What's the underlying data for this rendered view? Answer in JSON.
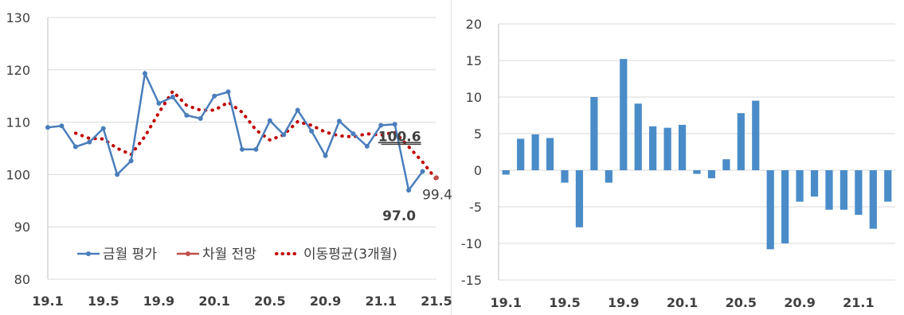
{
  "chart_data": [
    {
      "type": "line",
      "title": "",
      "xlabel": "",
      "ylabel": "",
      "ylim": [
        80,
        130
      ],
      "yticks": [
        80,
        90,
        100,
        110,
        120,
        130
      ],
      "xtick_labels": [
        "19.1",
        "19.5",
        "19.9",
        "20.1",
        "20.5",
        "20.9",
        "21.1",
        "21.5"
      ],
      "grid": "horizontal",
      "legend_position": "bottom-inside",
      "series": [
        {
          "name": "금월 평가",
          "color": "#4a7ebb",
          "style": "solid-markers",
          "values": [
            109.0,
            109.3,
            105.3,
            106.2,
            108.8,
            100.0,
            102.6,
            119.3,
            113.6,
            114.8,
            111.3,
            110.7,
            115.0,
            115.8,
            104.8,
            104.8,
            110.3,
            107.6,
            112.3,
            108.3,
            103.6,
            110.2,
            107.8,
            105.4,
            109.4,
            109.6,
            97.0,
            100.6
          ]
        },
        {
          "name": "차월 전망",
          "color": "#c0504d",
          "style": "marker",
          "values": [
            null,
            null,
            null,
            null,
            null,
            null,
            null,
            null,
            null,
            null,
            null,
            null,
            null,
            null,
            null,
            null,
            null,
            null,
            null,
            null,
            null,
            null,
            null,
            null,
            null,
            null,
            null,
            null,
            99.4
          ]
        },
        {
          "name": "이동평균(3개월)",
          "color": "#c00000",
          "style": "dotted",
          "values": [
            null,
            null,
            107.9,
            106.9,
            106.8,
            105.0,
            103.8,
            107.3,
            111.8,
            115.9,
            113.2,
            112.3,
            112.3,
            113.8,
            111.9,
            108.5,
            106.6,
            107.6,
            110.1,
            109.4,
            108.1,
            107.4,
            107.2,
            107.8,
            107.5,
            108.1,
            105.3,
            102.4,
            99.0
          ]
        }
      ],
      "annotations": [
        {
          "text": "100.6",
          "style": "bold underlined",
          "x_index": 27,
          "y": 100.6
        },
        {
          "text": "97.0",
          "style": "bold",
          "x_index": 26,
          "y": 97.0
        },
        {
          "text": "99.4",
          "style": "normal",
          "x_index": 28,
          "y": 99.4
        }
      ]
    },
    {
      "type": "bar",
      "title": "",
      "xlabel": "",
      "ylabel": "",
      "ylim": [
        -15,
        20
      ],
      "yticks": [
        -15,
        -10,
        -5,
        0,
        5,
        10,
        15,
        20
      ],
      "xtick_labels": [
        "19.1",
        "19.5",
        "19.9",
        "20.1",
        "20.5",
        "20.9",
        "21.1"
      ],
      "grid": "horizontal",
      "color": "#4a8cc8",
      "values": [
        -0.6,
        4.3,
        4.9,
        4.4,
        -1.7,
        -7.8,
        10.0,
        -1.7,
        15.2,
        9.1,
        6.0,
        5.8,
        6.2,
        -0.5,
        -1.1,
        1.5,
        7.8,
        9.5,
        -10.8,
        -10.0,
        -4.3,
        -3.6,
        -5.4,
        -5.4,
        -6.1,
        -8.0,
        -4.3
      ]
    }
  ]
}
